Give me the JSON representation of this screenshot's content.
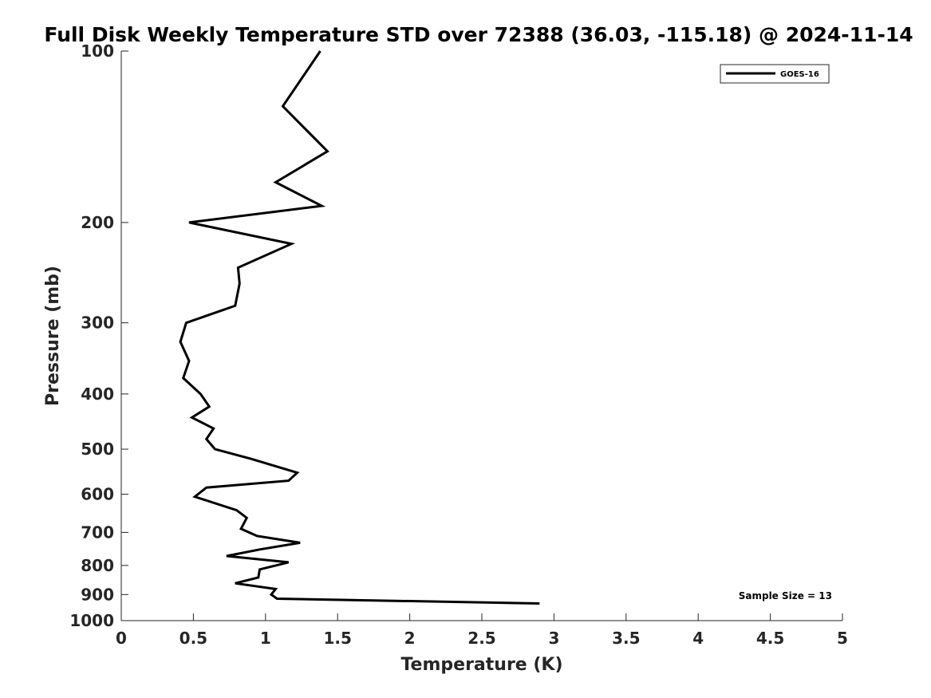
{
  "chart_data": {
    "type": "line",
    "title": "Full Disk Weekly Temperature STD over 72388 (36.03, -115.18) @ 2024-11-14",
    "xlabel": "Temperature (K)",
    "ylabel": "Pressure (mb)",
    "xlim": [
      0,
      5
    ],
    "ylim": [
      100,
      1000
    ],
    "yscale": "log",
    "y_reversed": true,
    "grid": false,
    "legend_position": "top-right",
    "xticks": [
      0,
      0.5,
      1,
      1.5,
      2,
      2.5,
      3,
      3.5,
      4,
      4.5,
      5
    ],
    "xtick_labels": [
      "0",
      "0.5",
      "1",
      "1.5",
      "2",
      "2.5",
      "3",
      "3.5",
      "4",
      "4.5",
      "5"
    ],
    "yticks": [
      100,
      200,
      300,
      400,
      500,
      600,
      700,
      800,
      900,
      1000
    ],
    "ytick_labels": [
      "100",
      "200",
      "300",
      "400",
      "500",
      "600",
      "700",
      "800",
      "900",
      "1000"
    ],
    "series": [
      {
        "name": "GOES-16",
        "color": "#000000",
        "points": [
          [
            1.38,
            100
          ],
          [
            1.12,
            125
          ],
          [
            1.43,
            150
          ],
          [
            1.07,
            170
          ],
          [
            1.39,
            187
          ],
          [
            0.47,
            200
          ],
          [
            1.18,
            218
          ],
          [
            0.81,
            240
          ],
          [
            0.82,
            256
          ],
          [
            0.79,
            280
          ],
          [
            0.45,
            300
          ],
          [
            0.41,
            324
          ],
          [
            0.47,
            350
          ],
          [
            0.43,
            375
          ],
          [
            0.55,
            400
          ],
          [
            0.61,
            421
          ],
          [
            0.49,
            440
          ],
          [
            0.64,
            460
          ],
          [
            0.59,
            480
          ],
          [
            0.65,
            500
          ],
          [
            0.9,
            520
          ],
          [
            1.22,
            550
          ],
          [
            1.16,
            568
          ],
          [
            0.59,
            584
          ],
          [
            0.51,
            606
          ],
          [
            0.8,
            640
          ],
          [
            0.87,
            660
          ],
          [
            0.83,
            690
          ],
          [
            0.94,
            710
          ],
          [
            1.24,
            730
          ],
          [
            0.96,
            750
          ],
          [
            0.73,
            770
          ],
          [
            1.16,
            790
          ],
          [
            0.96,
            813
          ],
          [
            0.95,
            840
          ],
          [
            0.79,
            860
          ],
          [
            1.07,
            880
          ],
          [
            1.04,
            900
          ],
          [
            1.08,
            915
          ],
          [
            2.9,
            933
          ]
        ]
      }
    ],
    "annotations": [
      "Sample Size = 13"
    ]
  }
}
